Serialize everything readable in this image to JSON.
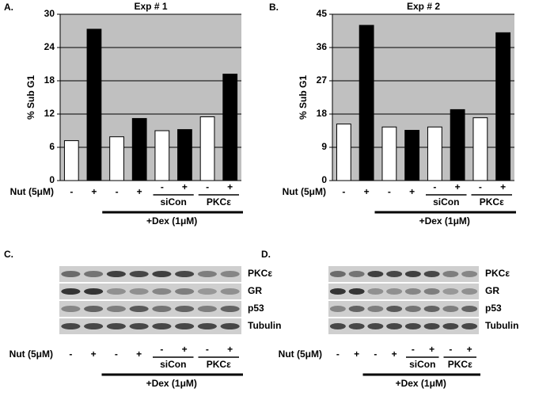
{
  "chart_data": [
    {
      "type": "bar",
      "panel": "A.",
      "title": "Exp # 1",
      "y_label": "% Sub G1",
      "x_label": "Nut (5μM)",
      "categories": [
        "-",
        "+",
        "-",
        "+",
        "-",
        "+",
        "-",
        "+"
      ],
      "values": [
        7.2,
        27.3,
        7.9,
        11.2,
        9.0,
        9.2,
        11.5,
        19.2
      ],
      "colors": [
        "#ffffff",
        "#000000",
        "#ffffff",
        "#000000",
        "#ffffff",
        "#000000",
        "#ffffff",
        "#000000"
      ],
      "ylim": [
        0,
        30
      ],
      "yticks": [
        0,
        6,
        12,
        18,
        24,
        30
      ],
      "grid": true,
      "plot_background": "#c0c0c0",
      "group_labels": [
        "siCon",
        "PKCε"
      ],
      "treatment_label": "+Dex (1μM)"
    },
    {
      "type": "bar",
      "panel": "B.",
      "title": "Exp # 2",
      "y_label": "% Sub G1",
      "x_label": "Nut (5μM)",
      "categories": [
        "-",
        "+",
        "-",
        "+",
        "-",
        "+",
        "-",
        "+"
      ],
      "values": [
        15.3,
        42.0,
        14.5,
        13.6,
        14.5,
        19.2,
        17.0,
        40.0
      ],
      "colors": [
        "#ffffff",
        "#000000",
        "#ffffff",
        "#000000",
        "#ffffff",
        "#000000",
        "#ffffff",
        "#000000"
      ],
      "ylim": [
        0,
        45
      ],
      "yticks": [
        0,
        9,
        18,
        27,
        36,
        45
      ],
      "grid": true,
      "plot_background": "#c0c0c0",
      "group_labels": [
        "siCon",
        "PKCε"
      ],
      "treatment_label": "+Dex (1μM)"
    }
  ],
  "blots": [
    {
      "panel": "C.",
      "rows": [
        "PKCε",
        "GR",
        "p53",
        "Tubulin"
      ],
      "x_label": "Nut (5μM)",
      "categories": [
        "-",
        "+",
        "-",
        "+",
        "-",
        "+",
        "-",
        "+"
      ],
      "group_labels": [
        "siCon",
        "PKCε"
      ],
      "treatment_label": "+Dex (1μM)"
    },
    {
      "panel": "D.",
      "rows": [
        "PKCε",
        "GR",
        "p53",
        "Tubulin"
      ],
      "x_label": "Nut (5μM)",
      "categories": [
        "-",
        "+",
        "-",
        "+",
        "-",
        "+",
        "-",
        "+"
      ],
      "group_labels": [
        "siCon",
        "PKCε"
      ],
      "treatment_label": "+Dex (1μM)"
    }
  ]
}
